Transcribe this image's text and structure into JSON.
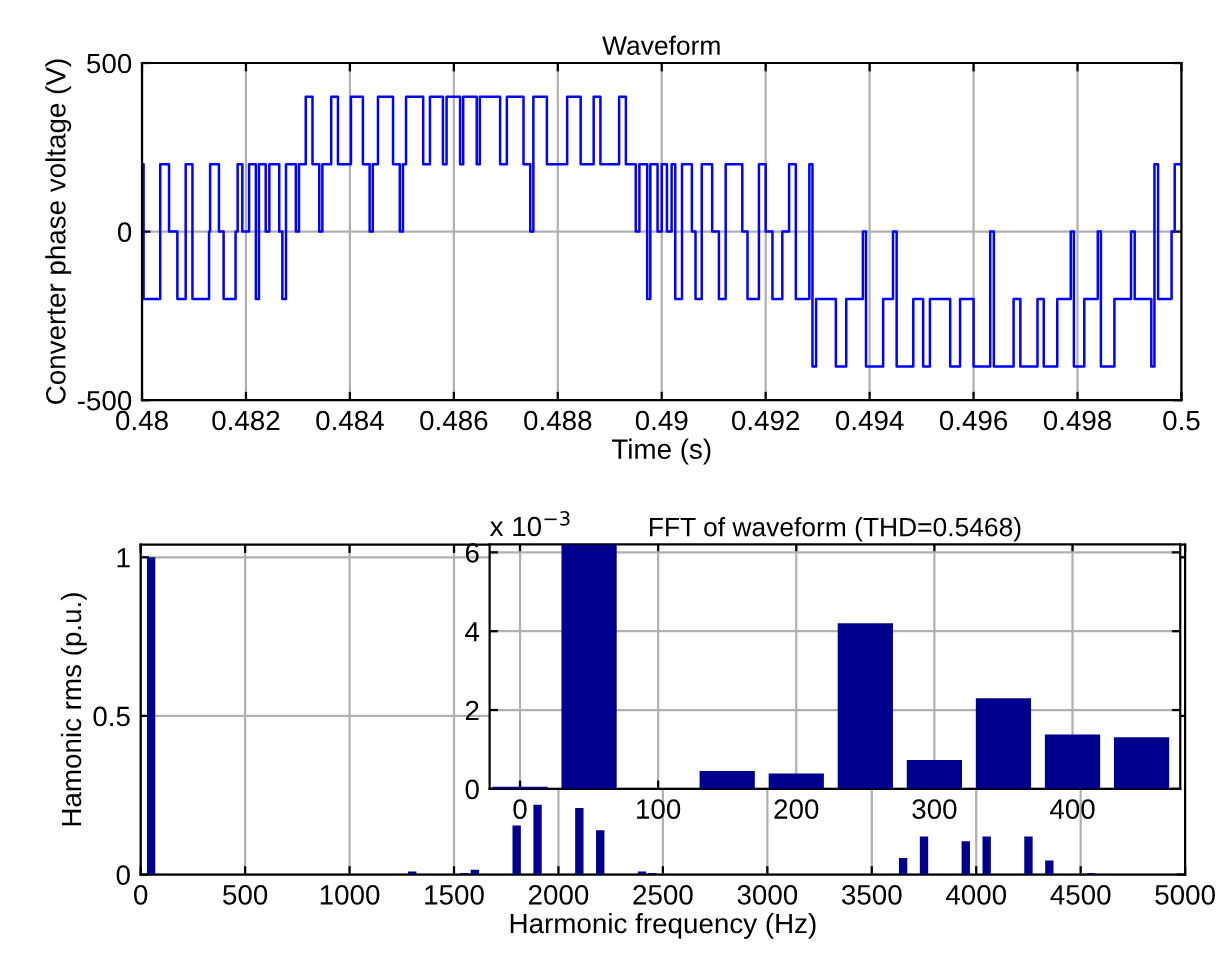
{
  "chart_data": [
    {
      "type": "step",
      "title": "Waveform",
      "xlabel": "Time (s)",
      "ylabel": "Converter phase voltage (V)",
      "grid": true,
      "xlim": [
        0.48,
        0.5
      ],
      "xticks": [
        0.48,
        0.482,
        0.484,
        0.486,
        0.488,
        0.49,
        0.492,
        0.494,
        0.496,
        0.498,
        0.5
      ],
      "ylim": [
        -500,
        500
      ],
      "yticks": [
        -500,
        0,
        500
      ],
      "series": [
        {
          "color": "#0000ff",
          "x": [
            0.48,
            0.48003,
            0.48035,
            0.48052,
            0.48068,
            0.48084,
            0.48097,
            0.48129,
            0.48131,
            0.48148,
            0.48157,
            0.4818,
            0.48184,
            0.48193,
            0.48206,
            0.48219,
            0.48225,
            0.48238,
            0.48245,
            0.48264,
            0.4827,
            0.48277,
            0.48296,
            0.48302,
            0.48315,
            0.48328,
            0.48341,
            0.48347,
            0.48364,
            0.48377,
            0.48402,
            0.48425,
            0.48438,
            0.48444,
            0.48454,
            0.48483,
            0.48496,
            0.48502,
            0.48508,
            0.48541,
            0.48554,
            0.48579,
            0.48586,
            0.48612,
            0.48618,
            0.48644,
            0.4865,
            0.48689,
            0.48702,
            0.48734,
            0.48747,
            0.48753,
            0.48779,
            0.48818,
            0.48844,
            0.48869,
            0.48882,
            0.48918,
            0.48931,
            0.4895,
            0.48957,
            0.48972,
            0.48978,
            0.48992,
            0.49,
            0.4901,
            0.49019,
            0.49026,
            0.49039,
            0.49058,
            0.49065,
            0.49077,
            0.49097,
            0.4911,
            0.49123,
            0.49155,
            0.49165,
            0.49187,
            0.492,
            0.49213,
            0.49232,
            0.49245,
            0.49258,
            0.49284,
            0.4929,
            0.49297,
            0.49335,
            0.49355,
            0.49387,
            0.49393,
            0.49426,
            0.49445,
            0.49452,
            0.49484,
            0.49503,
            0.49516,
            0.49555,
            0.49574,
            0.496,
            0.49632,
            0.49639,
            0.49677,
            0.4969,
            0.49723,
            0.49735,
            0.49761,
            0.49787,
            0.49793,
            0.49813,
            0.49839,
            0.49845,
            0.49871,
            0.49903,
            0.4991,
            0.49942,
            0.49948,
            0.49955,
            0.49981,
            0.49987,
            0.5
          ],
          "values": [
            200,
            -200,
            200,
            0,
            -200,
            200,
            -200,
            0,
            200,
            0,
            -200,
            0,
            200,
            0,
            200,
            -200,
            200,
            0,
            200,
            0,
            -200,
            200,
            0,
            200,
            400,
            200,
            0,
            200,
            400,
            200,
            400,
            200,
            0,
            200,
            400,
            200,
            0,
            200,
            400,
            200,
            400,
            200,
            400,
            200,
            400,
            200,
            400,
            200,
            400,
            200,
            0,
            400,
            200,
            400,
            200,
            400,
            200,
            400,
            200,
            0,
            200,
            -200,
            200,
            0,
            200,
            0,
            200,
            -200,
            200,
            0,
            -200,
            200,
            0,
            -200,
            200,
            0,
            -200,
            200,
            0,
            -200,
            0,
            200,
            -200,
            200,
            -400,
            -200,
            -400,
            -200,
            0,
            -400,
            -200,
            0,
            -400,
            -200,
            -400,
            -200,
            -400,
            -200,
            -400,
            0,
            -400,
            -200,
            -400,
            -200,
            -400,
            -200,
            0,
            -400,
            -200,
            0,
            -400,
            -200,
            0,
            -200,
            -400,
            200,
            -200,
            0,
            200,
            200
          ]
        }
      ]
    },
    {
      "type": "bar",
      "xlabel": "Harmonic frequency (Hz)",
      "ylabel": "Hamonic rms (p.u.)",
      "grid": true,
      "xlim": [
        0,
        5000
      ],
      "xticks": [
        0,
        500,
        1000,
        1500,
        2000,
        2500,
        3000,
        3500,
        4000,
        4500,
        5000
      ],
      "ylim": [
        0,
        1.04
      ],
      "yticks": [
        0,
        0.5,
        1
      ],
      "series": [
        {
          "color": "#00008f",
          "x": [
            50,
            1300,
            1550,
            1600,
            1800,
            1900,
            2100,
            2200,
            2400,
            2450,
            3450,
            3650,
            3750,
            3950,
            4050,
            4250,
            4350,
            4550
          ],
          "values": [
            1,
            0.01,
            0.005,
            0.015,
            0.155,
            0.22,
            0.21,
            0.14,
            0.01,
            0.005,
            null,
            0.052,
            0.12,
            0.105,
            0.12,
            0.12,
            0.044,
            0.005
          ]
        }
      ]
    },
    {
      "type": "bar",
      "title": "FFT of waveform (THD=0.5468)",
      "annotations": [
        "x 10$^{−3}$"
      ],
      "grid": true,
      "xlim": [
        -22,
        478
      ],
      "xticks": [
        0,
        100,
        200,
        300,
        400
      ],
      "ylim": [
        0,
        6.2
      ],
      "yticks": [
        0,
        2,
        4,
        6
      ],
      "series": [
        {
          "color": "#00008f",
          "x": [
            0,
            50,
            100,
            150,
            200,
            250,
            300,
            350,
            400,
            450
          ],
          "values": [
            0.05,
            6.2,
            null,
            0.45,
            0.39,
            4.2,
            0.73,
            2.3,
            1.38,
            1.31
          ]
        }
      ]
    }
  ]
}
